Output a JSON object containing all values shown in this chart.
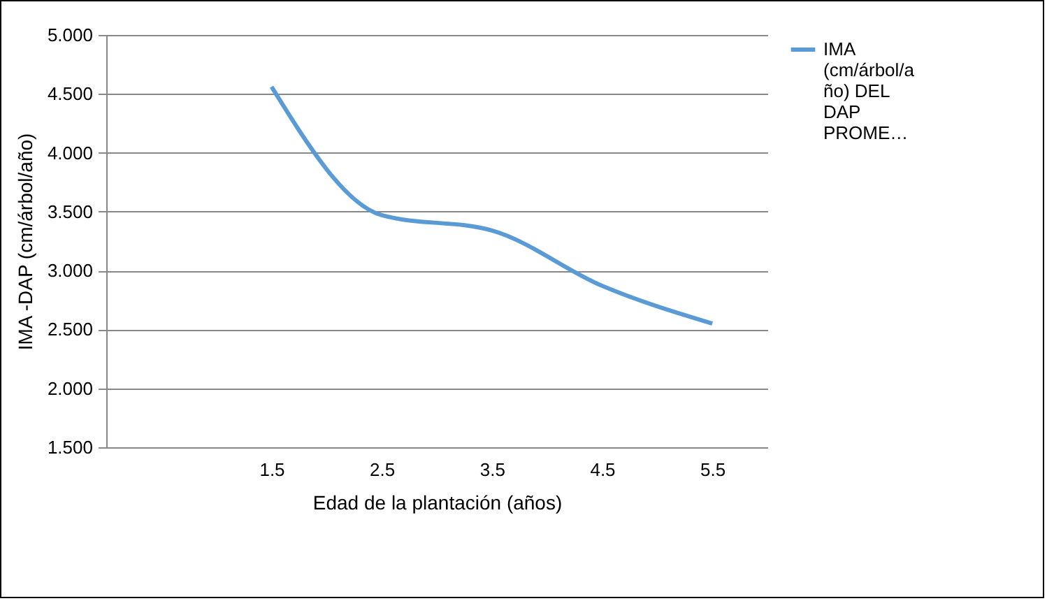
{
  "chart_data": {
    "type": "line",
    "xlabel": "Edad de la plantación (años)",
    "ylabel": "IMA -DAP (cm/árbol/año)",
    "categories": [
      null,
      "1.5",
      "2.5",
      "3.5",
      "4.5",
      "5.5"
    ],
    "series": [
      {
        "name": "IMA (cm/árbol/año) DEL DAP PROME…",
        "color": "#5b9bd5",
        "values": [
          null,
          4.56,
          3.47,
          3.34,
          2.87,
          2.55
        ]
      }
    ],
    "ylim": [
      1.5,
      5
    ],
    "yticks": [
      {
        "value": 1.5,
        "label": "1.500"
      },
      {
        "value": 2,
        "label": "2.000"
      },
      {
        "value": 2.5,
        "label": "2.500"
      },
      {
        "value": 3,
        "label": "3.000"
      },
      {
        "value": 3.5,
        "label": "3.500"
      },
      {
        "value": 4,
        "label": "4.000"
      },
      {
        "value": 4.5,
        "label": "4.500"
      },
      {
        "value": 5,
        "label": "5.000"
      }
    ],
    "grid": "y",
    "legend": "right",
    "marker": "none",
    "line_style": "solid"
  }
}
